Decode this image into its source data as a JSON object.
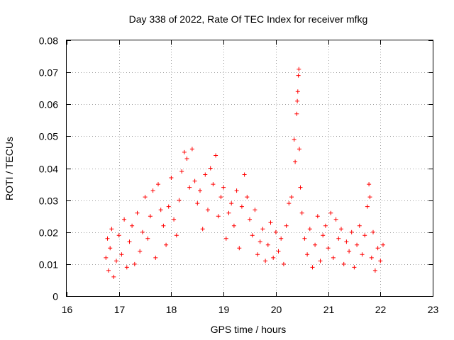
{
  "chart_data": {
    "type": "scatter",
    "title": "Day 338 of 2022, Rate Of TEC Index for receiver mfkg",
    "xlabel": "GPS time / hours",
    "ylabel": "ROTI / TECUs",
    "xlim": [
      16,
      23
    ],
    "ylim": [
      0,
      0.08
    ],
    "x_ticks": [
      "16",
      "17",
      "18",
      "19",
      "20",
      "21",
      "22",
      "23"
    ],
    "y_ticks": [
      "0",
      "0.01",
      "0.02",
      "0.03",
      "0.04",
      "0.05",
      "0.06",
      "0.07",
      "0.08"
    ],
    "grid": true,
    "marker": "+",
    "color": "#ff0000",
    "series": [
      {
        "points": [
          [
            16.75,
            0.012
          ],
          [
            16.78,
            0.018
          ],
          [
            16.8,
            0.008
          ],
          [
            16.83,
            0.015
          ],
          [
            16.86,
            0.021
          ],
          [
            16.9,
            0.006
          ],
          [
            16.95,
            0.011
          ],
          [
            17.0,
            0.019
          ],
          [
            17.05,
            0.013
          ],
          [
            17.1,
            0.024
          ],
          [
            17.15,
            0.009
          ],
          [
            17.2,
            0.017
          ],
          [
            17.25,
            0.022
          ],
          [
            17.3,
            0.01
          ],
          [
            17.35,
            0.026
          ],
          [
            17.4,
            0.014
          ],
          [
            17.45,
            0.02
          ],
          [
            17.5,
            0.031
          ],
          [
            17.55,
            0.018
          ],
          [
            17.6,
            0.025
          ],
          [
            17.65,
            0.033
          ],
          [
            17.7,
            0.012
          ],
          [
            17.75,
            0.035
          ],
          [
            17.8,
            0.027
          ],
          [
            17.85,
            0.022
          ],
          [
            17.9,
            0.016
          ],
          [
            17.95,
            0.028
          ],
          [
            18.0,
            0.037
          ],
          [
            18.05,
            0.024
          ],
          [
            18.1,
            0.019
          ],
          [
            18.15,
            0.03
          ],
          [
            18.2,
            0.039
          ],
          [
            18.25,
            0.045
          ],
          [
            18.3,
            0.043
          ],
          [
            18.35,
            0.034
          ],
          [
            18.4,
            0.046
          ],
          [
            18.45,
            0.036
          ],
          [
            18.5,
            0.029
          ],
          [
            18.55,
            0.033
          ],
          [
            18.6,
            0.021
          ],
          [
            18.65,
            0.038
          ],
          [
            18.7,
            0.027
          ],
          [
            18.75,
            0.04
          ],
          [
            18.8,
            0.035
          ],
          [
            18.85,
            0.044
          ],
          [
            18.9,
            0.025
          ],
          [
            18.95,
            0.031
          ],
          [
            19.0,
            0.034
          ],
          [
            19.05,
            0.018
          ],
          [
            19.1,
            0.026
          ],
          [
            19.15,
            0.029
          ],
          [
            19.2,
            0.022
          ],
          [
            19.25,
            0.033
          ],
          [
            19.3,
            0.015
          ],
          [
            19.35,
            0.028
          ],
          [
            19.4,
            0.038
          ],
          [
            19.45,
            0.031
          ],
          [
            19.5,
            0.024
          ],
          [
            19.55,
            0.019
          ],
          [
            19.6,
            0.027
          ],
          [
            19.65,
            0.013
          ],
          [
            19.7,
            0.017
          ],
          [
            19.75,
            0.021
          ],
          [
            19.8,
            0.011
          ],
          [
            19.85,
            0.016
          ],
          [
            19.9,
            0.023
          ],
          [
            19.95,
            0.012
          ],
          [
            20.0,
            0.02
          ],
          [
            20.05,
            0.014
          ],
          [
            20.1,
            0.018
          ],
          [
            20.15,
            0.01
          ],
          [
            20.2,
            0.022
          ],
          [
            20.25,
            0.029
          ],
          [
            20.3,
            0.031
          ],
          [
            20.35,
            0.049
          ],
          [
            20.37,
            0.042
          ],
          [
            20.4,
            0.057
          ],
          [
            20.41,
            0.061
          ],
          [
            20.42,
            0.064
          ],
          [
            20.43,
            0.069
          ],
          [
            20.44,
            0.071
          ],
          [
            20.45,
            0.046
          ],
          [
            20.47,
            0.034
          ],
          [
            20.5,
            0.026
          ],
          [
            20.55,
            0.018
          ],
          [
            20.6,
            0.013
          ],
          [
            20.65,
            0.021
          ],
          [
            20.7,
            0.009
          ],
          [
            20.75,
            0.016
          ],
          [
            20.8,
            0.025
          ],
          [
            20.85,
            0.011
          ],
          [
            20.9,
            0.019
          ],
          [
            20.95,
            0.022
          ],
          [
            21.0,
            0.015
          ],
          [
            21.05,
            0.026
          ],
          [
            21.1,
            0.012
          ],
          [
            21.15,
            0.024
          ],
          [
            21.2,
            0.018
          ],
          [
            21.25,
            0.021
          ],
          [
            21.3,
            0.01
          ],
          [
            21.35,
            0.017
          ],
          [
            21.4,
            0.014
          ],
          [
            21.45,
            0.02
          ],
          [
            21.5,
            0.009
          ],
          [
            21.55,
            0.016
          ],
          [
            21.6,
            0.022
          ],
          [
            21.65,
            0.013
          ],
          [
            21.7,
            0.019
          ],
          [
            21.75,
            0.028
          ],
          [
            21.78,
            0.035
          ],
          [
            21.8,
            0.031
          ],
          [
            21.83,
            0.012
          ],
          [
            21.86,
            0.02
          ],
          [
            21.9,
            0.008
          ],
          [
            21.95,
            0.015
          ],
          [
            22.0,
            0.011
          ],
          [
            22.05,
            0.016
          ]
        ]
      }
    ]
  }
}
